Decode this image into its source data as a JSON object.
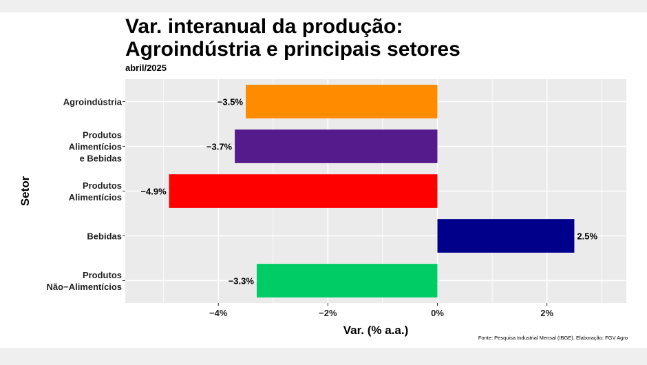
{
  "title_line1": "Var. interanual da produção:",
  "title_line2": "Agroindústria e principais setores",
  "subtitle": "abril/2025",
  "caption": "Fonte: Pesquisa Industrial Mensal (IBGE). Elaboração: FGV Agro",
  "chart_data": {
    "type": "bar",
    "orientation": "horizontal",
    "title": "Var. interanual da produção: Agroindústria e principais setores",
    "subtitle": "abril/2025",
    "xlabel": "Var. (% a.a.)",
    "ylabel": "Setor",
    "categories": [
      [
        "Agroindústria"
      ],
      [
        "Produtos",
        "Alimentícios",
        "e Bebidas"
      ],
      [
        "Produtos",
        "Alimentícios"
      ],
      [
        "Bebidas"
      ],
      [
        "Produtos",
        "Não−Alimentícios"
      ]
    ],
    "values": [
      -3.5,
      -3.7,
      -4.9,
      2.5,
      -3.3
    ],
    "data_labels": [
      "−3.5%",
      "−3.7%",
      "−4.9%",
      "2.5%",
      "−3.3%"
    ],
    "colors": [
      "#ff8c00",
      "#551a8b",
      "#ff0000",
      "#00008b",
      "#00cc66"
    ],
    "xlim": [
      -5.7,
      3.45
    ],
    "xticks": [
      -4,
      -2,
      0,
      2
    ],
    "xtick_labels": [
      "−4%",
      "−2%",
      "0%",
      "2%"
    ],
    "grid": true,
    "legend": "none",
    "panel_background": "#ebebeb"
  }
}
